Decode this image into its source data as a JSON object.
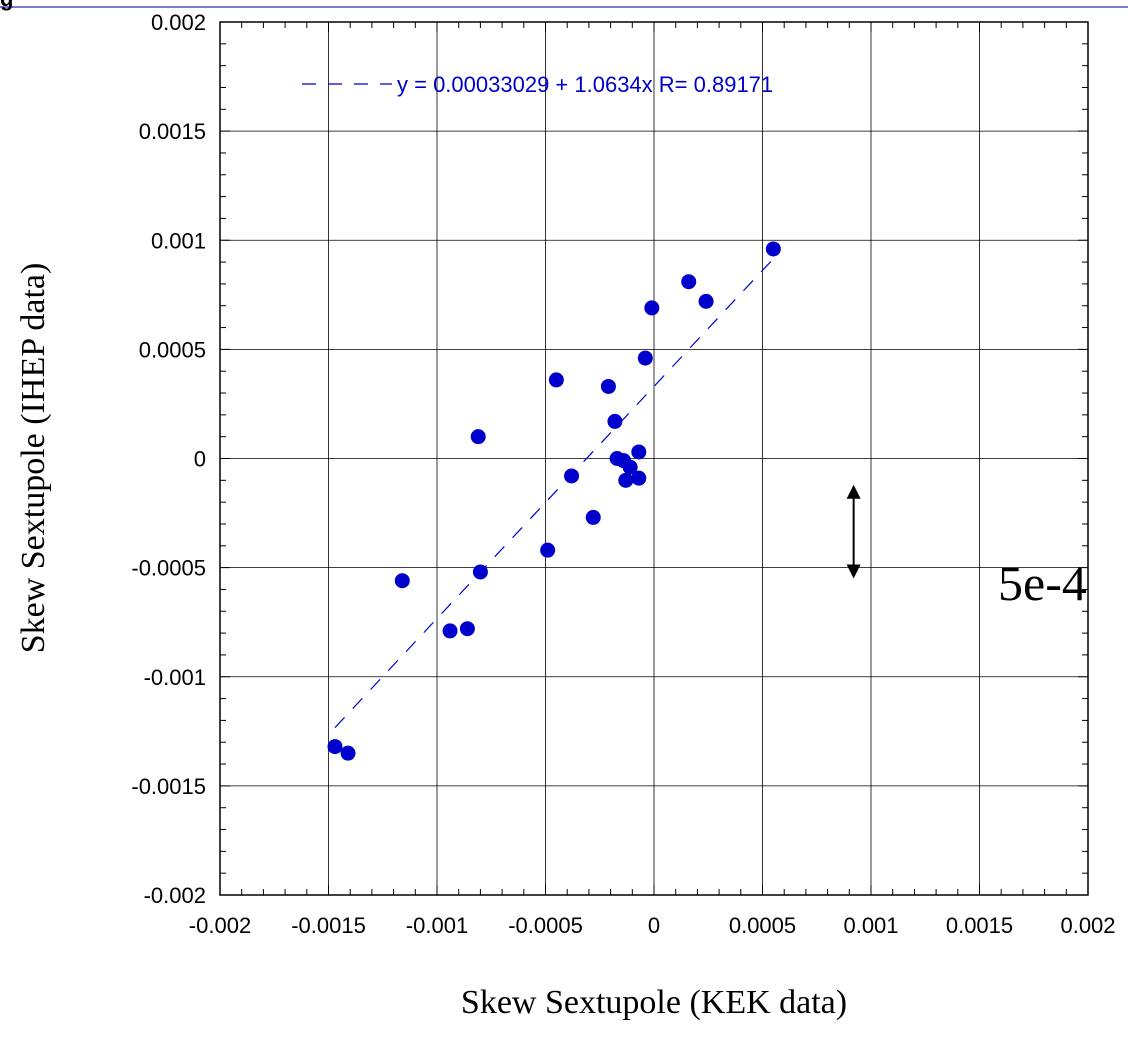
{
  "header": {
    "corner_glyph": "g"
  },
  "chart_data": {
    "type": "scatter",
    "xlabel": "Skew Sextupole (KEK data)",
    "ylabel": "Skew Sextupole (IHEP data)",
    "xlim": [
      -0.002,
      0.002
    ],
    "ylim": [
      -0.002,
      0.002
    ],
    "x_ticks": [
      "-0.002",
      "-0.0015",
      "-0.001",
      "-0.0005",
      "0",
      "0.0005",
      "0.001",
      "0.0015",
      "0.002"
    ],
    "y_ticks": [
      "0.002",
      "0.0015",
      "0.001",
      "0.0005",
      "0",
      "-0.0005",
      "-0.001",
      "-0.0015",
      "-0.002"
    ],
    "grid": true,
    "point_color": "#0000cc",
    "fit": {
      "intercept": 0.00033029,
      "slope": 1.0634,
      "x_range": [
        -0.00147,
        0.00055
      ],
      "label": "y = 0.00033029 + 1.0634x   R= 0.89171",
      "color": "#0000cc"
    },
    "points": [
      [
        -0.00147,
        -0.00132
      ],
      [
        -0.00141,
        -0.00135
      ],
      [
        -0.00116,
        -0.00056
      ],
      [
        -0.00094,
        -0.00079
      ],
      [
        -0.00086,
        -0.00078
      ],
      [
        -0.0008,
        -0.00052
      ],
      [
        -0.00081,
        0.0001
      ],
      [
        -0.00049,
        -0.00042
      ],
      [
        -0.00045,
        0.00036
      ],
      [
        -0.00038,
        -8e-05
      ],
      [
        -0.00028,
        -0.00027
      ],
      [
        -0.00021,
        0.00033
      ],
      [
        -0.00018,
        0.00017
      ],
      [
        -0.00017,
        0.0
      ],
      [
        -0.00014,
        -1e-05
      ],
      [
        -0.00013,
        -0.0001
      ],
      [
        -0.00011,
        -4e-05
      ],
      [
        -7e-05,
        -9e-05
      ],
      [
        -7e-05,
        3e-05
      ],
      [
        -4e-05,
        0.00046
      ],
      [
        -1e-05,
        0.00069
      ],
      [
        0.00016,
        0.00081
      ],
      [
        0.00024,
        0.00072
      ],
      [
        0.00055,
        0.00096
      ]
    ],
    "annotation": {
      "label": "5e-4",
      "arrow_x": 0.00092,
      "arrow_y_from": -0.00012,
      "arrow_y_to": -0.00055
    }
  }
}
